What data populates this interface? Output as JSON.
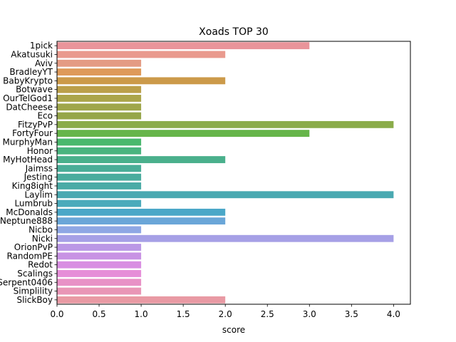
{
  "chart_data": {
    "type": "bar",
    "orientation": "horizontal",
    "title": "Xoads TOP 30",
    "xlabel": "score",
    "ylabel": "",
    "xlim": [
      0,
      4.2
    ],
    "xticks": [
      "0.0",
      "0.5",
      "1.0",
      "1.5",
      "2.0",
      "2.5",
      "3.0",
      "3.5",
      "4.0"
    ],
    "grid": false,
    "categories": [
      "1pick",
      "Akatusuki",
      "Aviv",
      "BradleyYT",
      "BabyKrypto",
      "Botwave",
      "OurTelGod1",
      "DatCheese",
      "Eco",
      "FitzyPvP",
      "FortyFour",
      "MurphyMan",
      "Honor",
      "MyHotHead",
      "Jaimss",
      "Jesting",
      "King8ight",
      "Laylim",
      "Lumbrub",
      "McDonalds",
      "Neptune888",
      "Nicbo",
      "Nicki",
      "OrionPvP",
      "RandomPE",
      "Redot",
      "Scalings",
      "Serpent0406",
      "Simplility",
      "SlickBoy"
    ],
    "values": [
      3,
      2,
      1,
      1,
      2,
      1,
      1,
      1,
      1,
      4,
      3,
      1,
      1,
      2,
      1,
      1,
      1,
      4,
      1,
      2,
      2,
      1,
      4,
      1,
      1,
      1,
      1,
      1,
      1,
      2
    ],
    "colors": [
      "#e9949a",
      "#e99a8e",
      "#e49b84",
      "#de9a5a",
      "#cc9a4a",
      "#bb9f4a",
      "#aba54a",
      "#9fa64a",
      "#96a64a",
      "#8aac4a",
      "#66b54a",
      "#4ab86d",
      "#4ab47f",
      "#4ab08c",
      "#4aad98",
      "#4aac9e",
      "#4aaba6",
      "#4aa9b1",
      "#4aaabb",
      "#4aa7c8",
      "#6aa6d8",
      "#8ea7e4",
      "#a6a0e6",
      "#bb98e6",
      "#c892e4",
      "#d88ee2",
      "#e68ed8",
      "#e891c6",
      "#e996b6",
      "#e99aa4"
    ]
  }
}
